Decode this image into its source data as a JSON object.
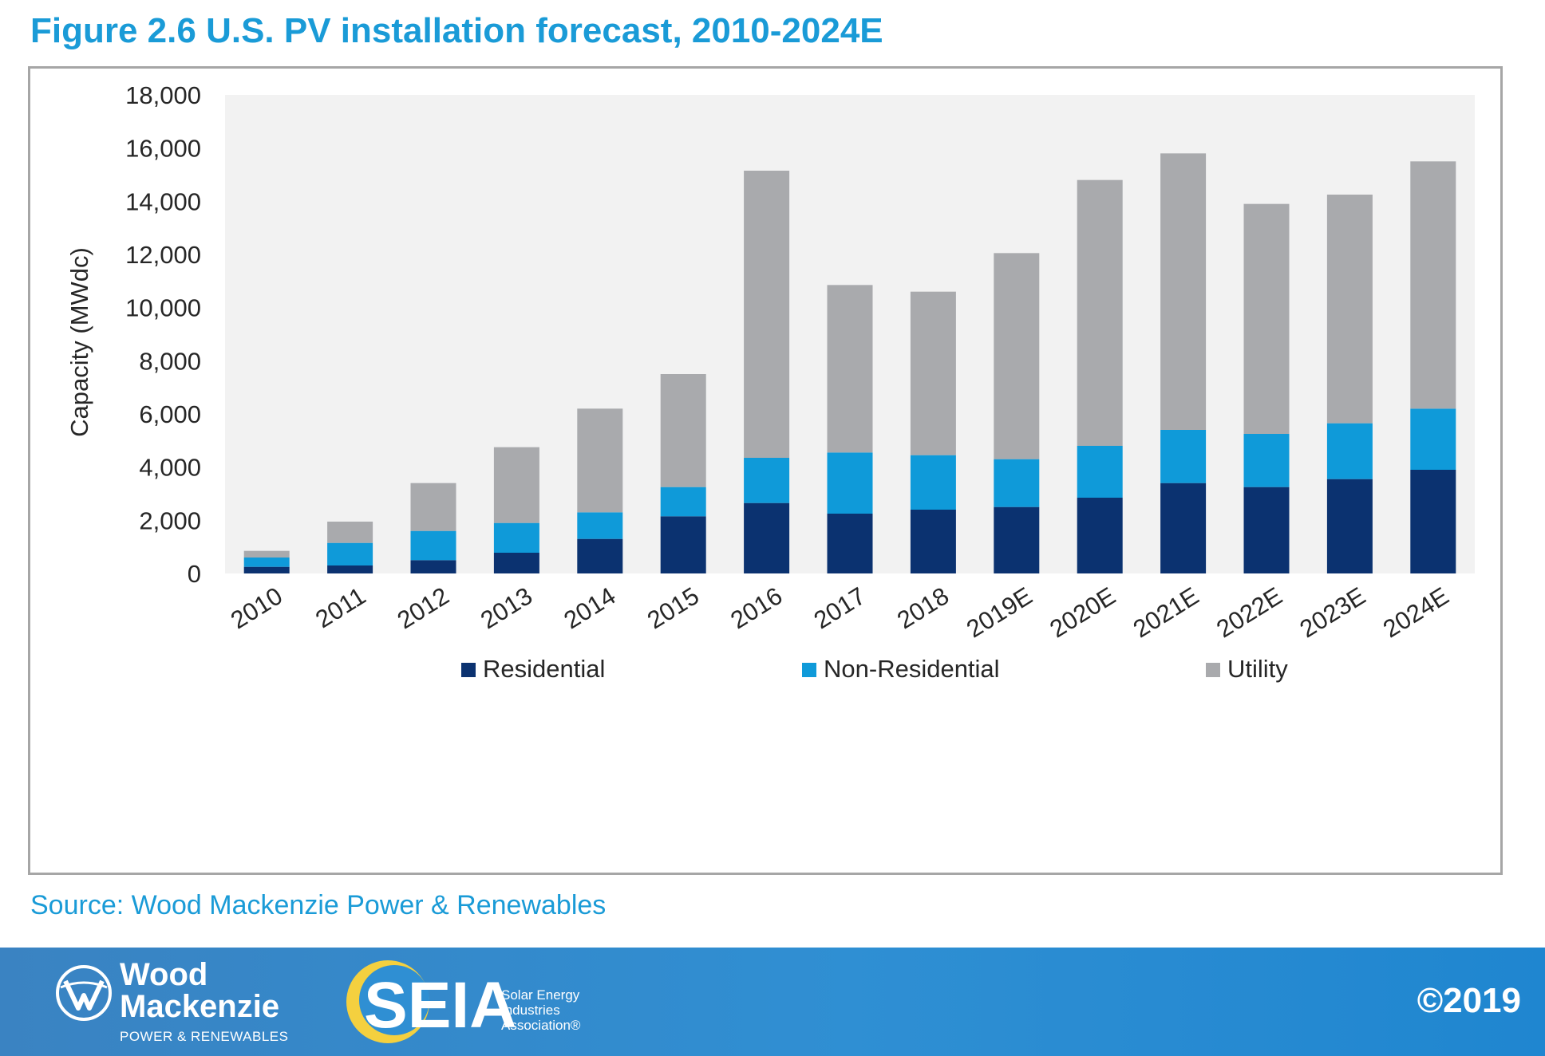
{
  "figure_title": "Figure 2.6 U.S. PV installation forecast, 2010-2024E",
  "source": "Source: Wood Mackenzie Power & Renewables",
  "footer": {
    "wm_line1": "Wood",
    "wm_line2": "Mackenzie",
    "wm_line3": "POWER & RENEWABLES",
    "seia_mark": "SEIA",
    "seia_line1": "Solar Energy",
    "seia_line2": "Industries",
    "seia_line3": "Association®",
    "copyright": "©2019"
  },
  "colors": {
    "residential": "#0b3270",
    "non_residential": "#0f9ad9",
    "utility": "#a9aaad",
    "plot_bg": "#f2f2f2",
    "title": "#1a9bd7"
  },
  "chart_data": {
    "type": "bar",
    "stacked": true,
    "title": "",
    "xlabel": "",
    "ylabel": "Capacity (MWdc)",
    "ylim": [
      0,
      18000
    ],
    "yticks": [
      0,
      2000,
      4000,
      6000,
      8000,
      10000,
      12000,
      14000,
      16000,
      18000
    ],
    "ytick_labels": [
      "0",
      "2,000",
      "4,000",
      "6,000",
      "8,000",
      "10,000",
      "12,000",
      "14,000",
      "16,000",
      "18,000"
    ],
    "grid": false,
    "legend_position": "bottom",
    "categories": [
      "2010",
      "2011",
      "2012",
      "2013",
      "2014",
      "2015",
      "2016",
      "2017",
      "2018",
      "2019E",
      "2020E",
      "2021E",
      "2022E",
      "2023E",
      "2024E"
    ],
    "series": [
      {
        "name": "Residential",
        "color": "#0b3270",
        "values": [
          250,
          300,
          500,
          780,
          1300,
          2150,
          2650,
          2250,
          2400,
          2500,
          2850,
          3400,
          3250,
          3550,
          3900
        ]
      },
      {
        "name": "Non-Residential",
        "color": "#0f9ad9",
        "values": [
          350,
          850,
          1100,
          1120,
          1000,
          1100,
          1700,
          2300,
          2050,
          1800,
          1950,
          2000,
          2000,
          2100,
          2300
        ]
      },
      {
        "name": "Utility",
        "color": "#a9aaad",
        "values": [
          250,
          800,
          1800,
          2850,
          3900,
          4250,
          10800,
          6300,
          6150,
          7750,
          10000,
          10400,
          8650,
          8600,
          9300
        ]
      }
    ]
  }
}
